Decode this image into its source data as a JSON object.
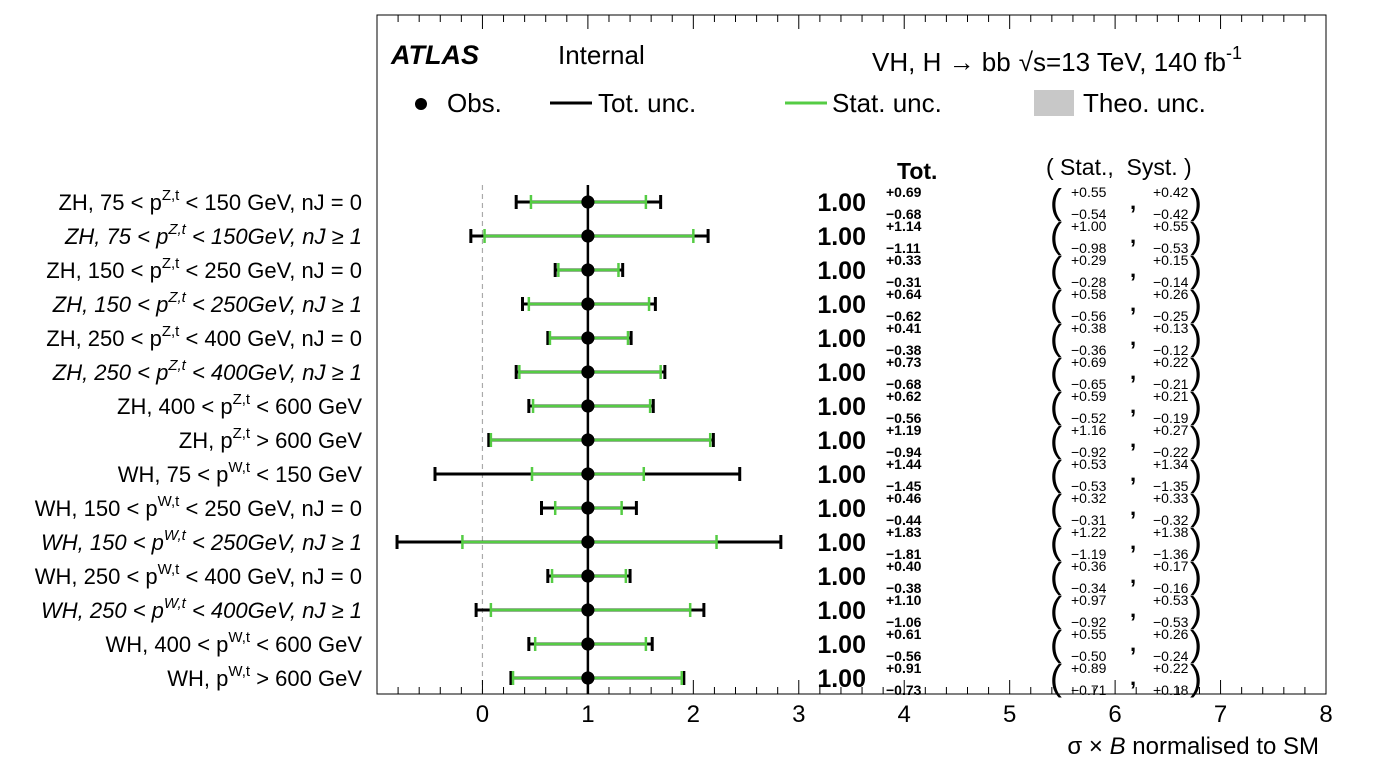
{
  "chart_data": {
    "type": "scatter",
    "experiment": "ATLAS",
    "status": "Internal",
    "process": "VH, H → bb",
    "energy": "√s=13 TeV, 140 fb",
    "lumi_exp": "-1",
    "legend": {
      "obs": "Obs.",
      "tot": "Tot. unc.",
      "stat": "Stat. unc.",
      "theo": "Theo. unc.",
      "placement": "top"
    },
    "col_headers": {
      "tot": "Tot.",
      "stat_syst": "( Stat.,  Syst. )"
    },
    "xlabel_sym": "σ × ",
    "xlabel_var": "B",
    "xlabel_rest": " normalised to SM",
    "xlim": [
      -1,
      8
    ],
    "xticks": [
      "0",
      "1",
      "2",
      "3",
      "4",
      "5",
      "6",
      "7",
      "8"
    ],
    "sm_reference": 0,
    "colors": {
      "tot": "#000000",
      "stat": "#55cc44",
      "theo": "#c8c8c8",
      "ref": "#aaaaaa"
    },
    "rows": [
      {
        "pre": "ZH, 75 < p",
        "sup": "Z,t",
        "post": " < 150 GeV, nJ = 0",
        "italic": false,
        "value": 1.0,
        "label": "1.00",
        "tot_up": "+0.69",
        "tot_dn": "−0.68",
        "stat_up": "+0.55",
        "stat_dn": "−0.54",
        "syst_up": "+0.42",
        "syst_dn": "−0.42",
        "tu": 0.69,
        "td": 0.68,
        "su": 0.55,
        "sd": 0.54
      },
      {
        "pre": "ZH, 75 < p",
        "sup": "Z,t",
        "post": " < 150GeV, nJ ≥ 1",
        "italic": true,
        "value": 1.0,
        "label": "1.00",
        "tot_up": "+1.14",
        "tot_dn": "−1.11",
        "stat_up": "+1.00",
        "stat_dn": "−0.98",
        "syst_up": "+0.55",
        "syst_dn": "−0.53",
        "tu": 1.14,
        "td": 1.11,
        "su": 1.0,
        "sd": 0.98
      },
      {
        "pre": "ZH, 150 < p",
        "sup": "Z,t",
        "post": " < 250 GeV, nJ = 0",
        "italic": false,
        "value": 1.0,
        "label": "1.00",
        "tot_up": "+0.33",
        "tot_dn": "−0.31",
        "stat_up": "+0.29",
        "stat_dn": "−0.28",
        "syst_up": "+0.15",
        "syst_dn": "−0.14",
        "tu": 0.33,
        "td": 0.31,
        "su": 0.29,
        "sd": 0.28
      },
      {
        "pre": "ZH, 150 < p",
        "sup": "Z,t",
        "post": " < 250GeV, nJ ≥ 1",
        "italic": true,
        "value": 1.0,
        "label": "1.00",
        "tot_up": "+0.64",
        "tot_dn": "−0.62",
        "stat_up": "+0.58",
        "stat_dn": "−0.56",
        "syst_up": "+0.26",
        "syst_dn": "−0.25",
        "tu": 0.64,
        "td": 0.62,
        "su": 0.58,
        "sd": 0.56
      },
      {
        "pre": "ZH, 250 < p",
        "sup": "Z,t",
        "post": " < 400 GeV, nJ = 0",
        "italic": false,
        "value": 1.0,
        "label": "1.00",
        "tot_up": "+0.41",
        "tot_dn": "−0.38",
        "stat_up": "+0.38",
        "stat_dn": "−0.36",
        "syst_up": "+0.13",
        "syst_dn": "−0.12",
        "tu": 0.41,
        "td": 0.38,
        "su": 0.38,
        "sd": 0.36
      },
      {
        "pre": "ZH, 250 < p",
        "sup": "Z,t",
        "post": " < 400GeV, nJ ≥ 1",
        "italic": true,
        "value": 1.0,
        "label": "1.00",
        "tot_up": "+0.73",
        "tot_dn": "−0.68",
        "stat_up": "+0.69",
        "stat_dn": "−0.65",
        "syst_up": "+0.22",
        "syst_dn": "−0.21",
        "tu": 0.73,
        "td": 0.68,
        "su": 0.69,
        "sd": 0.65
      },
      {
        "pre": "ZH, 400 < p",
        "sup": "Z,t",
        "post": " < 600 GeV",
        "italic": false,
        "value": 1.0,
        "label": "1.00",
        "tot_up": "+0.62",
        "tot_dn": "−0.56",
        "stat_up": "+0.59",
        "stat_dn": "−0.52",
        "syst_up": "+0.21",
        "syst_dn": "−0.19",
        "tu": 0.62,
        "td": 0.56,
        "su": 0.59,
        "sd": 0.52
      },
      {
        "pre": "ZH, p",
        "sup": "Z,t",
        "post": " > 600 GeV",
        "italic": false,
        "value": 1.0,
        "label": "1.00",
        "tot_up": "+1.19",
        "tot_dn": "−0.94",
        "stat_up": "+1.16",
        "stat_dn": "−0.92",
        "syst_up": "+0.27",
        "syst_dn": "−0.22",
        "tu": 1.19,
        "td": 0.94,
        "su": 1.16,
        "sd": 0.92
      },
      {
        "pre": "WH, 75 < p",
        "sup": "W,t",
        "post": " < 150 GeV",
        "italic": false,
        "value": 1.0,
        "label": "1.00",
        "tot_up": "+1.44",
        "tot_dn": "−1.45",
        "stat_up": "+0.53",
        "stat_dn": "−0.53",
        "syst_up": "+1.34",
        "syst_dn": "−1.35",
        "tu": 1.44,
        "td": 1.45,
        "su": 0.53,
        "sd": 0.53
      },
      {
        "pre": "WH, 150 < p",
        "sup": "W,t",
        "post": " < 250 GeV, nJ = 0",
        "italic": false,
        "value": 1.0,
        "label": "1.00",
        "tot_up": "+0.46",
        "tot_dn": "−0.44",
        "stat_up": "+0.32",
        "stat_dn": "−0.31",
        "syst_up": "+0.33",
        "syst_dn": "−0.32",
        "tu": 0.46,
        "td": 0.44,
        "su": 0.32,
        "sd": 0.31
      },
      {
        "pre": "WH, 150 < p",
        "sup": "W,t",
        "post": " < 250GeV, nJ ≥ 1",
        "italic": true,
        "value": 1.0,
        "label": "1.00",
        "tot_up": "+1.83",
        "tot_dn": "−1.81",
        "stat_up": "+1.22",
        "stat_dn": "−1.19",
        "syst_up": "+1.38",
        "syst_dn": "−1.36",
        "tu": 1.83,
        "td": 1.81,
        "su": 1.22,
        "sd": 1.19
      },
      {
        "pre": "WH, 250 < p",
        "sup": "W,t",
        "post": " < 400 GeV, nJ = 0",
        "italic": false,
        "value": 1.0,
        "label": "1.00",
        "tot_up": "+0.40",
        "tot_dn": "−0.38",
        "stat_up": "+0.36",
        "stat_dn": "−0.34",
        "syst_up": "+0.17",
        "syst_dn": "−0.16",
        "tu": 0.4,
        "td": 0.38,
        "su": 0.36,
        "sd": 0.34
      },
      {
        "pre": "WH, 250 < p",
        "sup": "W,t",
        "post": " < 400GeV, nJ ≥ 1",
        "italic": true,
        "value": 1.0,
        "label": "1.00",
        "tot_up": "+1.10",
        "tot_dn": "−1.06",
        "stat_up": "+0.97",
        "stat_dn": "−0.92",
        "syst_up": "+0.53",
        "syst_dn": "−0.53",
        "tu": 1.1,
        "td": 1.06,
        "su": 0.97,
        "sd": 0.92
      },
      {
        "pre": "WH, 400 < p",
        "sup": "W,t",
        "post": " < 600 GeV",
        "italic": false,
        "value": 1.0,
        "label": "1.00",
        "tot_up": "+0.61",
        "tot_dn": "−0.56",
        "stat_up": "+0.55",
        "stat_dn": "−0.50",
        "syst_up": "+0.26",
        "syst_dn": "−0.24",
        "tu": 0.61,
        "td": 0.56,
        "su": 0.55,
        "sd": 0.5
      },
      {
        "pre": "WH, p",
        "sup": "W,t",
        "post": " > 600 GeV",
        "italic": false,
        "value": 1.0,
        "label": "1.00",
        "tot_up": "+0.91",
        "tot_dn": "−0.73",
        "stat_up": "+0.89",
        "stat_dn": "−0.71",
        "syst_up": "+0.22",
        "syst_dn": "−0.18",
        "tu": 0.91,
        "td": 0.73,
        "su": 0.89,
        "sd": 0.71
      }
    ]
  }
}
